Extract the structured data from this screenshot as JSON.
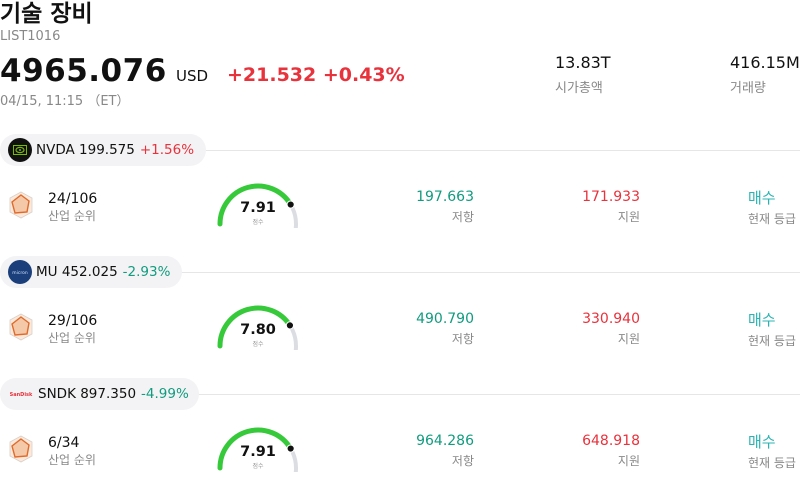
{
  "header": {
    "title": "기술 장비",
    "code": "LIST1016",
    "price": "4965.076",
    "currency": "USD",
    "change": "+21.532 +0.43%",
    "timestamp": "04/15, 11:15 （ET）",
    "market_cap_value": "13.83T",
    "market_cap_label": "시가총액",
    "volume_value": "416.15M",
    "volume_label": "거래량"
  },
  "colors": {
    "up": "#e8323c",
    "down": "#119c7f",
    "gauge_green": "#36c93a",
    "gauge_track": "#dcdde3",
    "rating": "#2bb3b3"
  },
  "stocks": [
    {
      "ticker": "NVDA",
      "price": "199.575",
      "pct": "+1.56%",
      "direction": "up",
      "logo_icon": "nvidia-logo-icon",
      "rank": "24/106",
      "rank_label": "산업 순위",
      "score": "7.91",
      "score_fraction": 0.791,
      "score_label": "점수",
      "resistance": "197.663",
      "resistance_label": "저항",
      "support": "171.933",
      "support_label": "지원",
      "rating": "매수",
      "rating_label": "현재 등급"
    },
    {
      "ticker": "MU",
      "price": "452.025",
      "pct": "-2.93%",
      "direction": "down",
      "logo_icon": "micron-logo-icon",
      "rank": "29/106",
      "rank_label": "산업 순위",
      "score": "7.80",
      "score_fraction": 0.78,
      "score_label": "점수",
      "resistance": "490.790",
      "resistance_label": "저항",
      "support": "330.940",
      "support_label": "지원",
      "rating": "매수",
      "rating_label": "현재 등급"
    },
    {
      "ticker": "SNDK",
      "price": "897.350",
      "pct": "-4.99%",
      "direction": "down",
      "logo_icon": "sandisk-logo-icon",
      "rank": "6/34",
      "rank_label": "산업 순위",
      "score": "7.91",
      "score_fraction": 0.791,
      "score_label": "점수",
      "resistance": "964.286",
      "resistance_label": "저항",
      "support": "648.918",
      "support_label": "지원",
      "rating": "매수",
      "rating_label": "현재 등급"
    }
  ]
}
